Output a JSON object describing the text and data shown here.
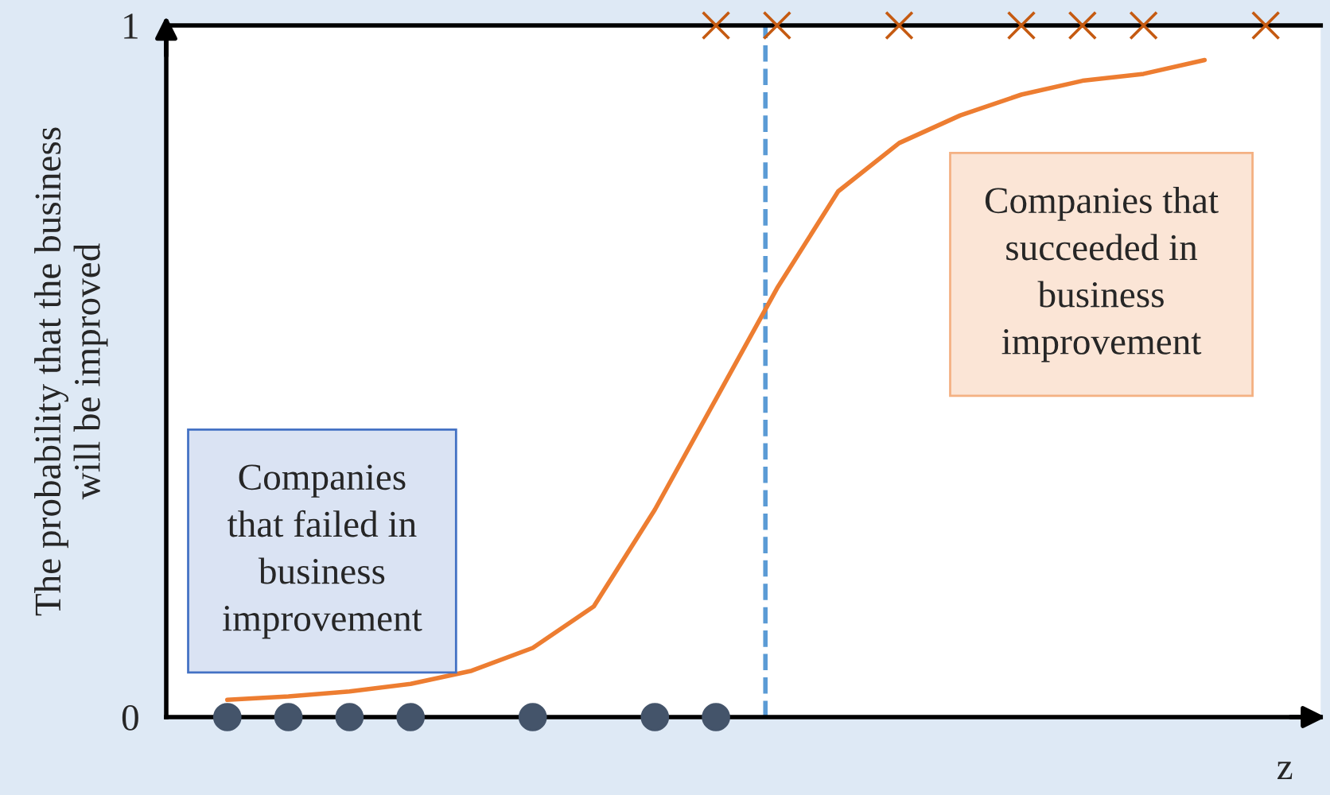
{
  "chart_data": {
    "type": "scatter",
    "xlabel": "z",
    "ylabel": "The probability that the business\nwill be improved",
    "categories": [
      null,
      null,
      null,
      null,
      null,
      null,
      null,
      null,
      null,
      null,
      null,
      null,
      null,
      null,
      null,
      null,
      null,
      null,
      null
    ],
    "ylim": [
      0,
      1
    ],
    "yticks": [
      0,
      1
    ],
    "legend": false,
    "series": [
      {
        "type": "line",
        "color": "#ed7d31",
        "marker": "none",
        "line_style": "solid",
        "values": [
          null,
          0.025,
          0.03,
          0.037,
          0.048,
          0.067,
          0.1,
          0.16,
          0.3,
          0.46,
          0.62,
          0.76,
          0.83,
          0.87,
          0.9,
          0.92,
          0.93,
          0.95,
          null
        ]
      },
      {
        "color": "#44546a",
        "marker": "circle",
        "values": [
          null,
          0,
          0,
          0,
          0,
          null,
          0,
          null,
          0,
          0,
          null,
          null,
          null,
          null,
          null,
          null,
          null,
          null,
          null
        ]
      },
      {
        "color": "#c55a11",
        "marker": "cross",
        "values": [
          null,
          null,
          null,
          null,
          null,
          null,
          null,
          null,
          null,
          1,
          1,
          null,
          1,
          null,
          1,
          1,
          1,
          null,
          1
        ]
      }
    ],
    "annotations": [
      "Companies\nthat failed in\nbusiness\nimprovement",
      "Companies that\nsucceeded in\nbusiness\nimprovement"
    ]
  }
}
